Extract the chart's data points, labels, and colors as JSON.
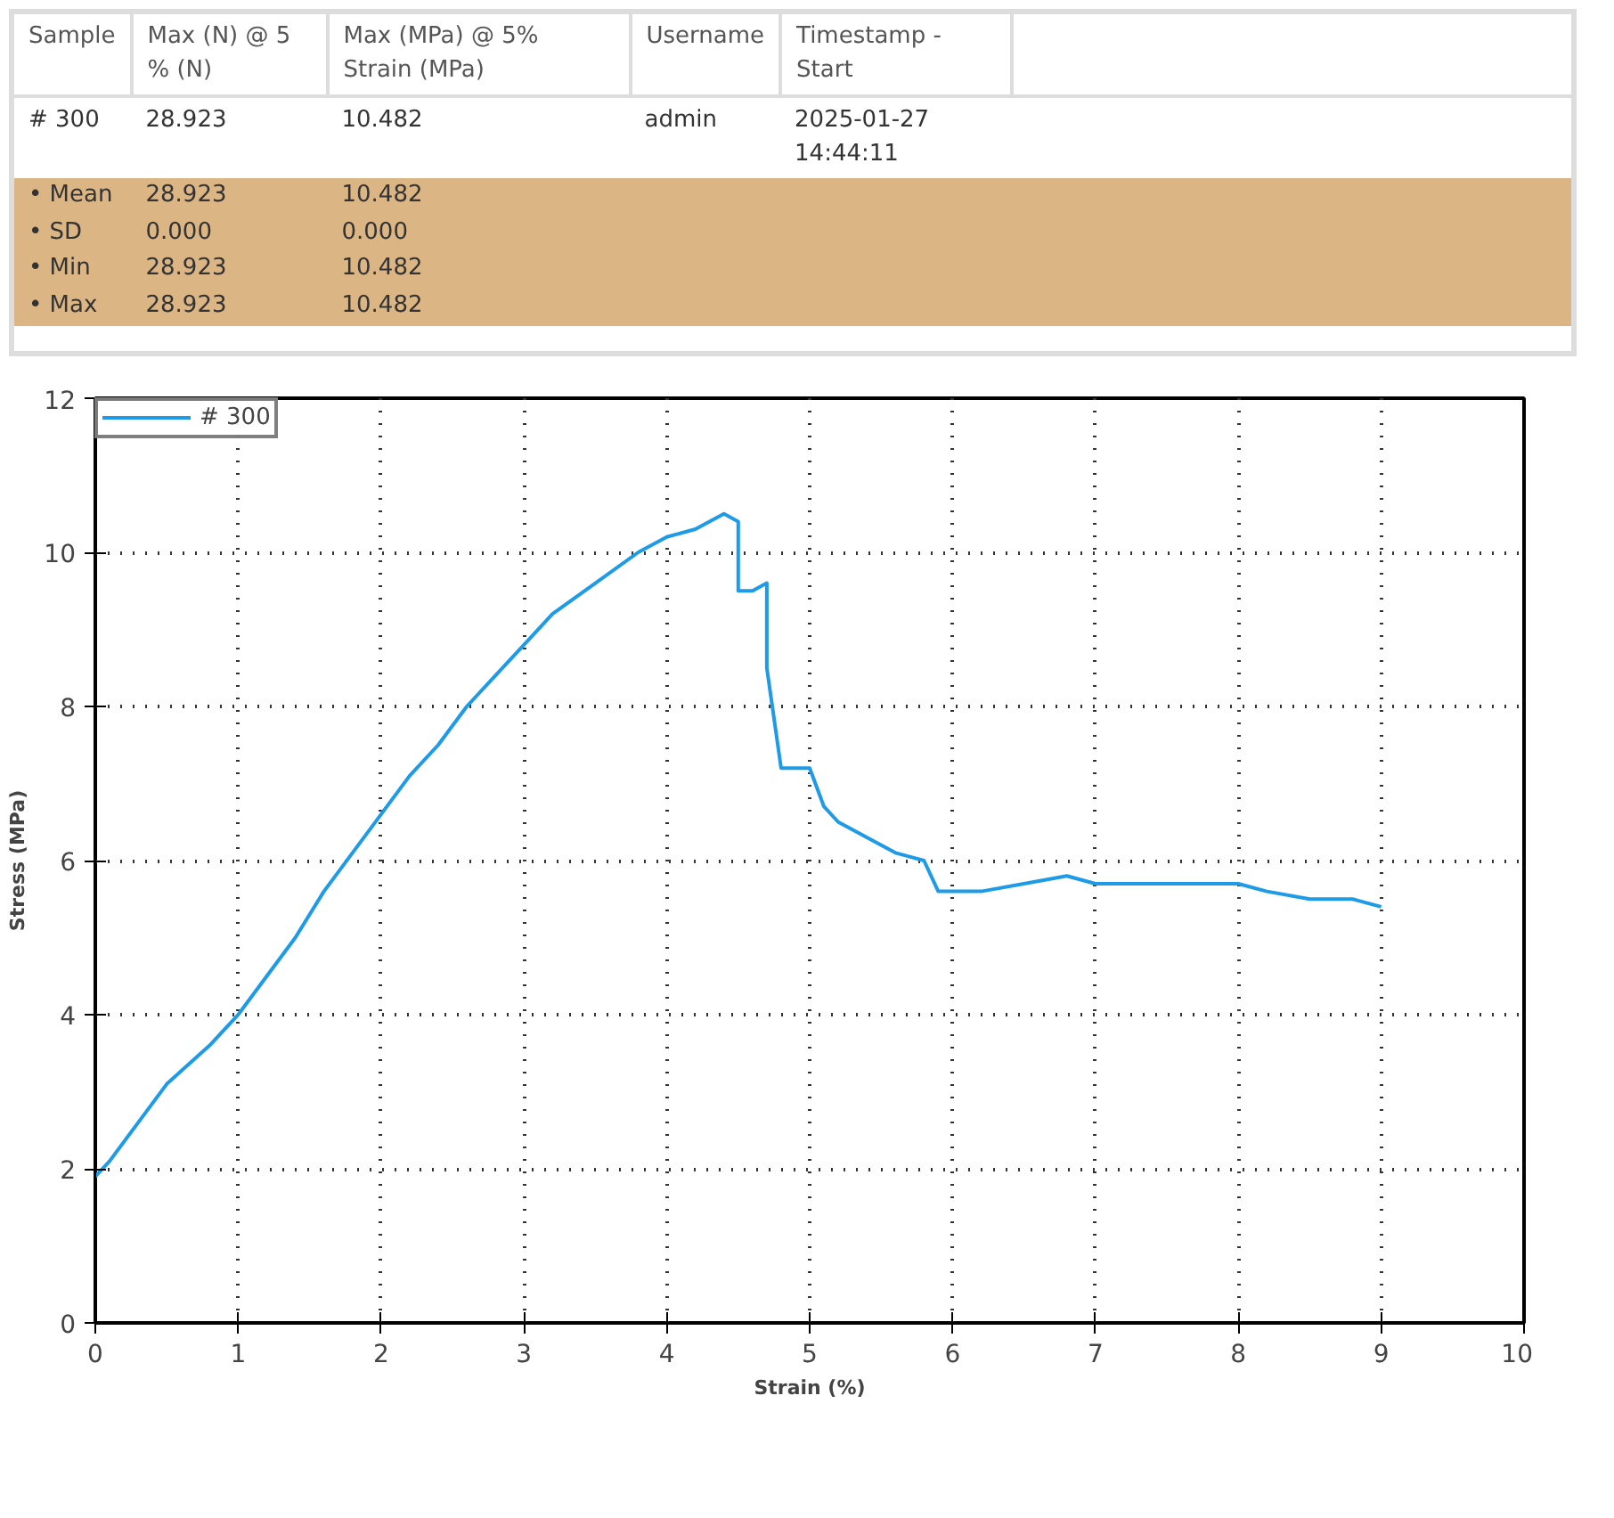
{
  "chart_data": [
    {
      "type": "other",
      "categories": [
        "Sample",
        "Max (N) @ 5 % (N)",
        "Max (MPa) @ 5% Strain (MPa)",
        "Username",
        "Timestamp - Start"
      ],
      "annotations": [
        "# 300",
        "28.923",
        "10.482",
        "admin",
        "2025-01-27 14:44:11",
        "• Mean",
        "28.923",
        "10.482",
        "• SD",
        "0.000",
        "0.000",
        "• Min",
        "28.923",
        "10.482",
        "• Max",
        "28.923",
        "10.482"
      ]
    },
    {
      "type": "line",
      "xlabel": "Strain (%)",
      "ylabel": "Stress (MPa)",
      "xlim": [
        0,
        10
      ],
      "ylim": [
        0,
        12
      ],
      "xticks": [
        0,
        1,
        2,
        3,
        4,
        5,
        6,
        7,
        8,
        9,
        10
      ],
      "yticks": [
        0,
        2,
        4,
        6,
        8,
        10,
        12
      ],
      "grid": true,
      "legend": "top left",
      "marker": "none",
      "line_style": "solid",
      "series": [
        {
          "name": "# 300",
          "color": "#1e9be6",
          "x": [
            0,
            0.1,
            0.3,
            0.5,
            0.8,
            1,
            1.2,
            1.4,
            1.6,
            1.8,
            2,
            2.2,
            2.4,
            2.6,
            2.8,
            3,
            3.2,
            3.5,
            3.8,
            4,
            4.2,
            4.4,
            4.5,
            4.5,
            4.6,
            4.7,
            4.7,
            4.8,
            4.9,
            5.0,
            5.1,
            5.2,
            5.4,
            5.6,
            5.8,
            5.9,
            6.0,
            6.2,
            6.5,
            6.8,
            7,
            7.5,
            8,
            8.2,
            8.5,
            8.8,
            9.0
          ],
          "values": [
            1.9,
            2.1,
            2.6,
            3.1,
            3.6,
            4.0,
            4.5,
            5.0,
            5.6,
            6.1,
            6.6,
            7.1,
            7.5,
            8.0,
            8.4,
            8.8,
            9.2,
            9.6,
            10.0,
            10.2,
            10.3,
            10.5,
            10.4,
            9.5,
            9.5,
            9.6,
            8.5,
            7.2,
            7.2,
            7.2,
            6.7,
            6.5,
            6.3,
            6.1,
            6.0,
            5.6,
            5.6,
            5.6,
            5.7,
            5.8,
            5.7,
            5.7,
            5.7,
            5.6,
            5.5,
            5.5,
            5.4
          ]
        }
      ]
    }
  ]
}
